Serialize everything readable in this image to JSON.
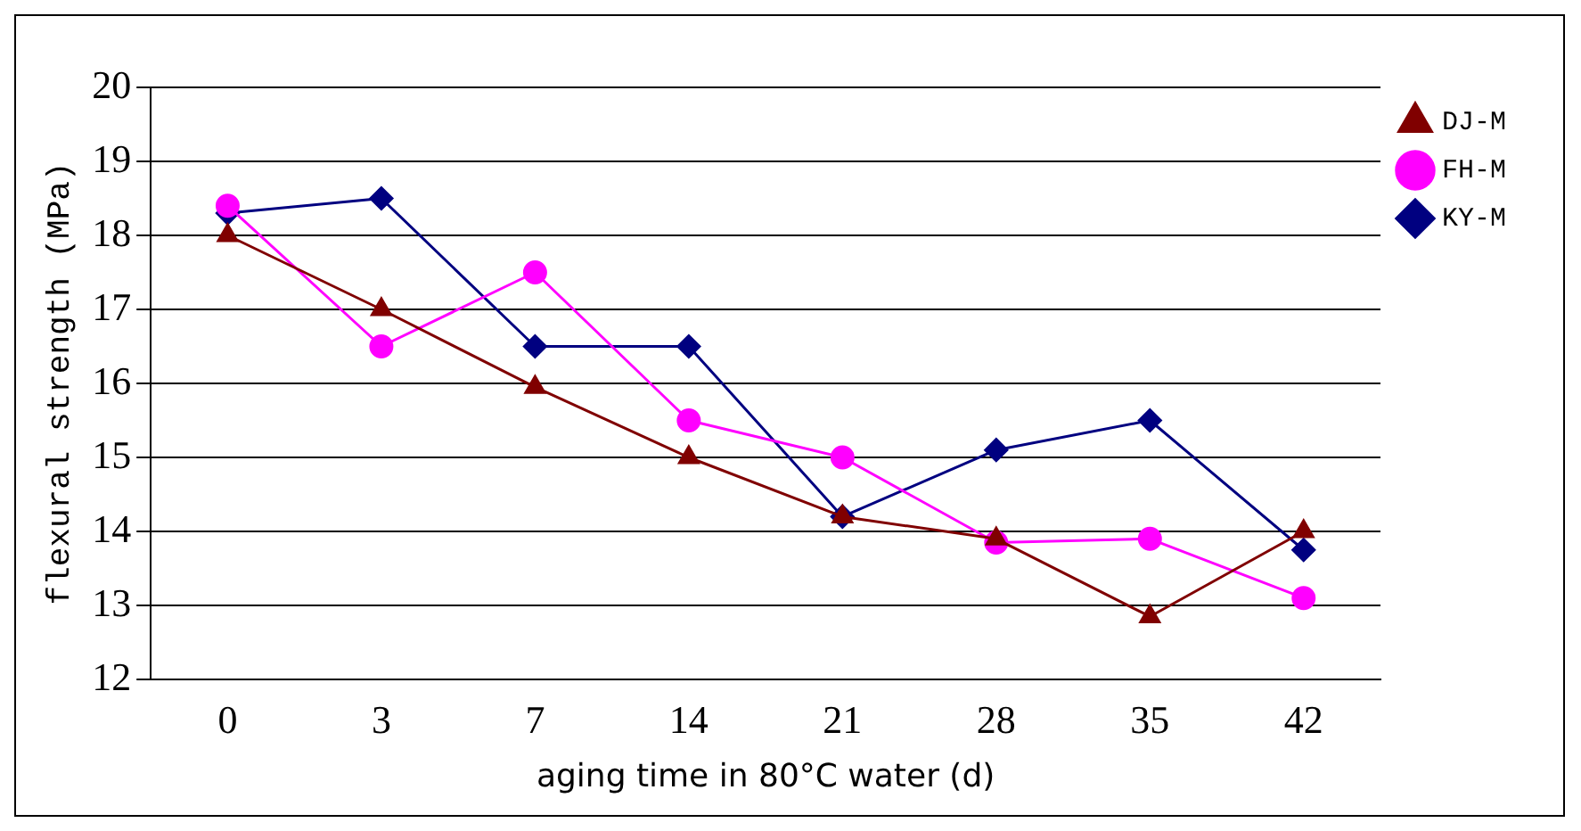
{
  "chart_data": {
    "type": "line",
    "xlabel": "aging time in 80°C water (d)",
    "ylabel": "flexural strength (MPa)",
    "categories": [
      "0",
      "3",
      "7",
      "14",
      "21",
      "28",
      "35",
      "42"
    ],
    "series": [
      {
        "name": "KY-M",
        "color": "#000080",
        "marker": "diamond",
        "values": [
          18.3,
          18.5,
          16.5,
          16.5,
          14.2,
          15.1,
          15.5,
          13.75
        ]
      },
      {
        "name": "FH-M",
        "color": "#ff00ff",
        "marker": "circle",
        "values": [
          18.4,
          16.5,
          17.5,
          15.5,
          15.0,
          13.85,
          13.9,
          13.1
        ]
      },
      {
        "name": "DJ-M",
        "color": "#800000",
        "marker": "triangle",
        "values": [
          18.0,
          17.0,
          15.95,
          15.0,
          14.2,
          13.9,
          12.85,
          14.0
        ]
      }
    ],
    "ylim": [
      12,
      20
    ],
    "yticks": [
      12,
      13,
      14,
      15,
      16,
      17,
      18,
      19,
      20
    ],
    "grid": "y",
    "legend": "top right",
    "line_style": "solid"
  }
}
